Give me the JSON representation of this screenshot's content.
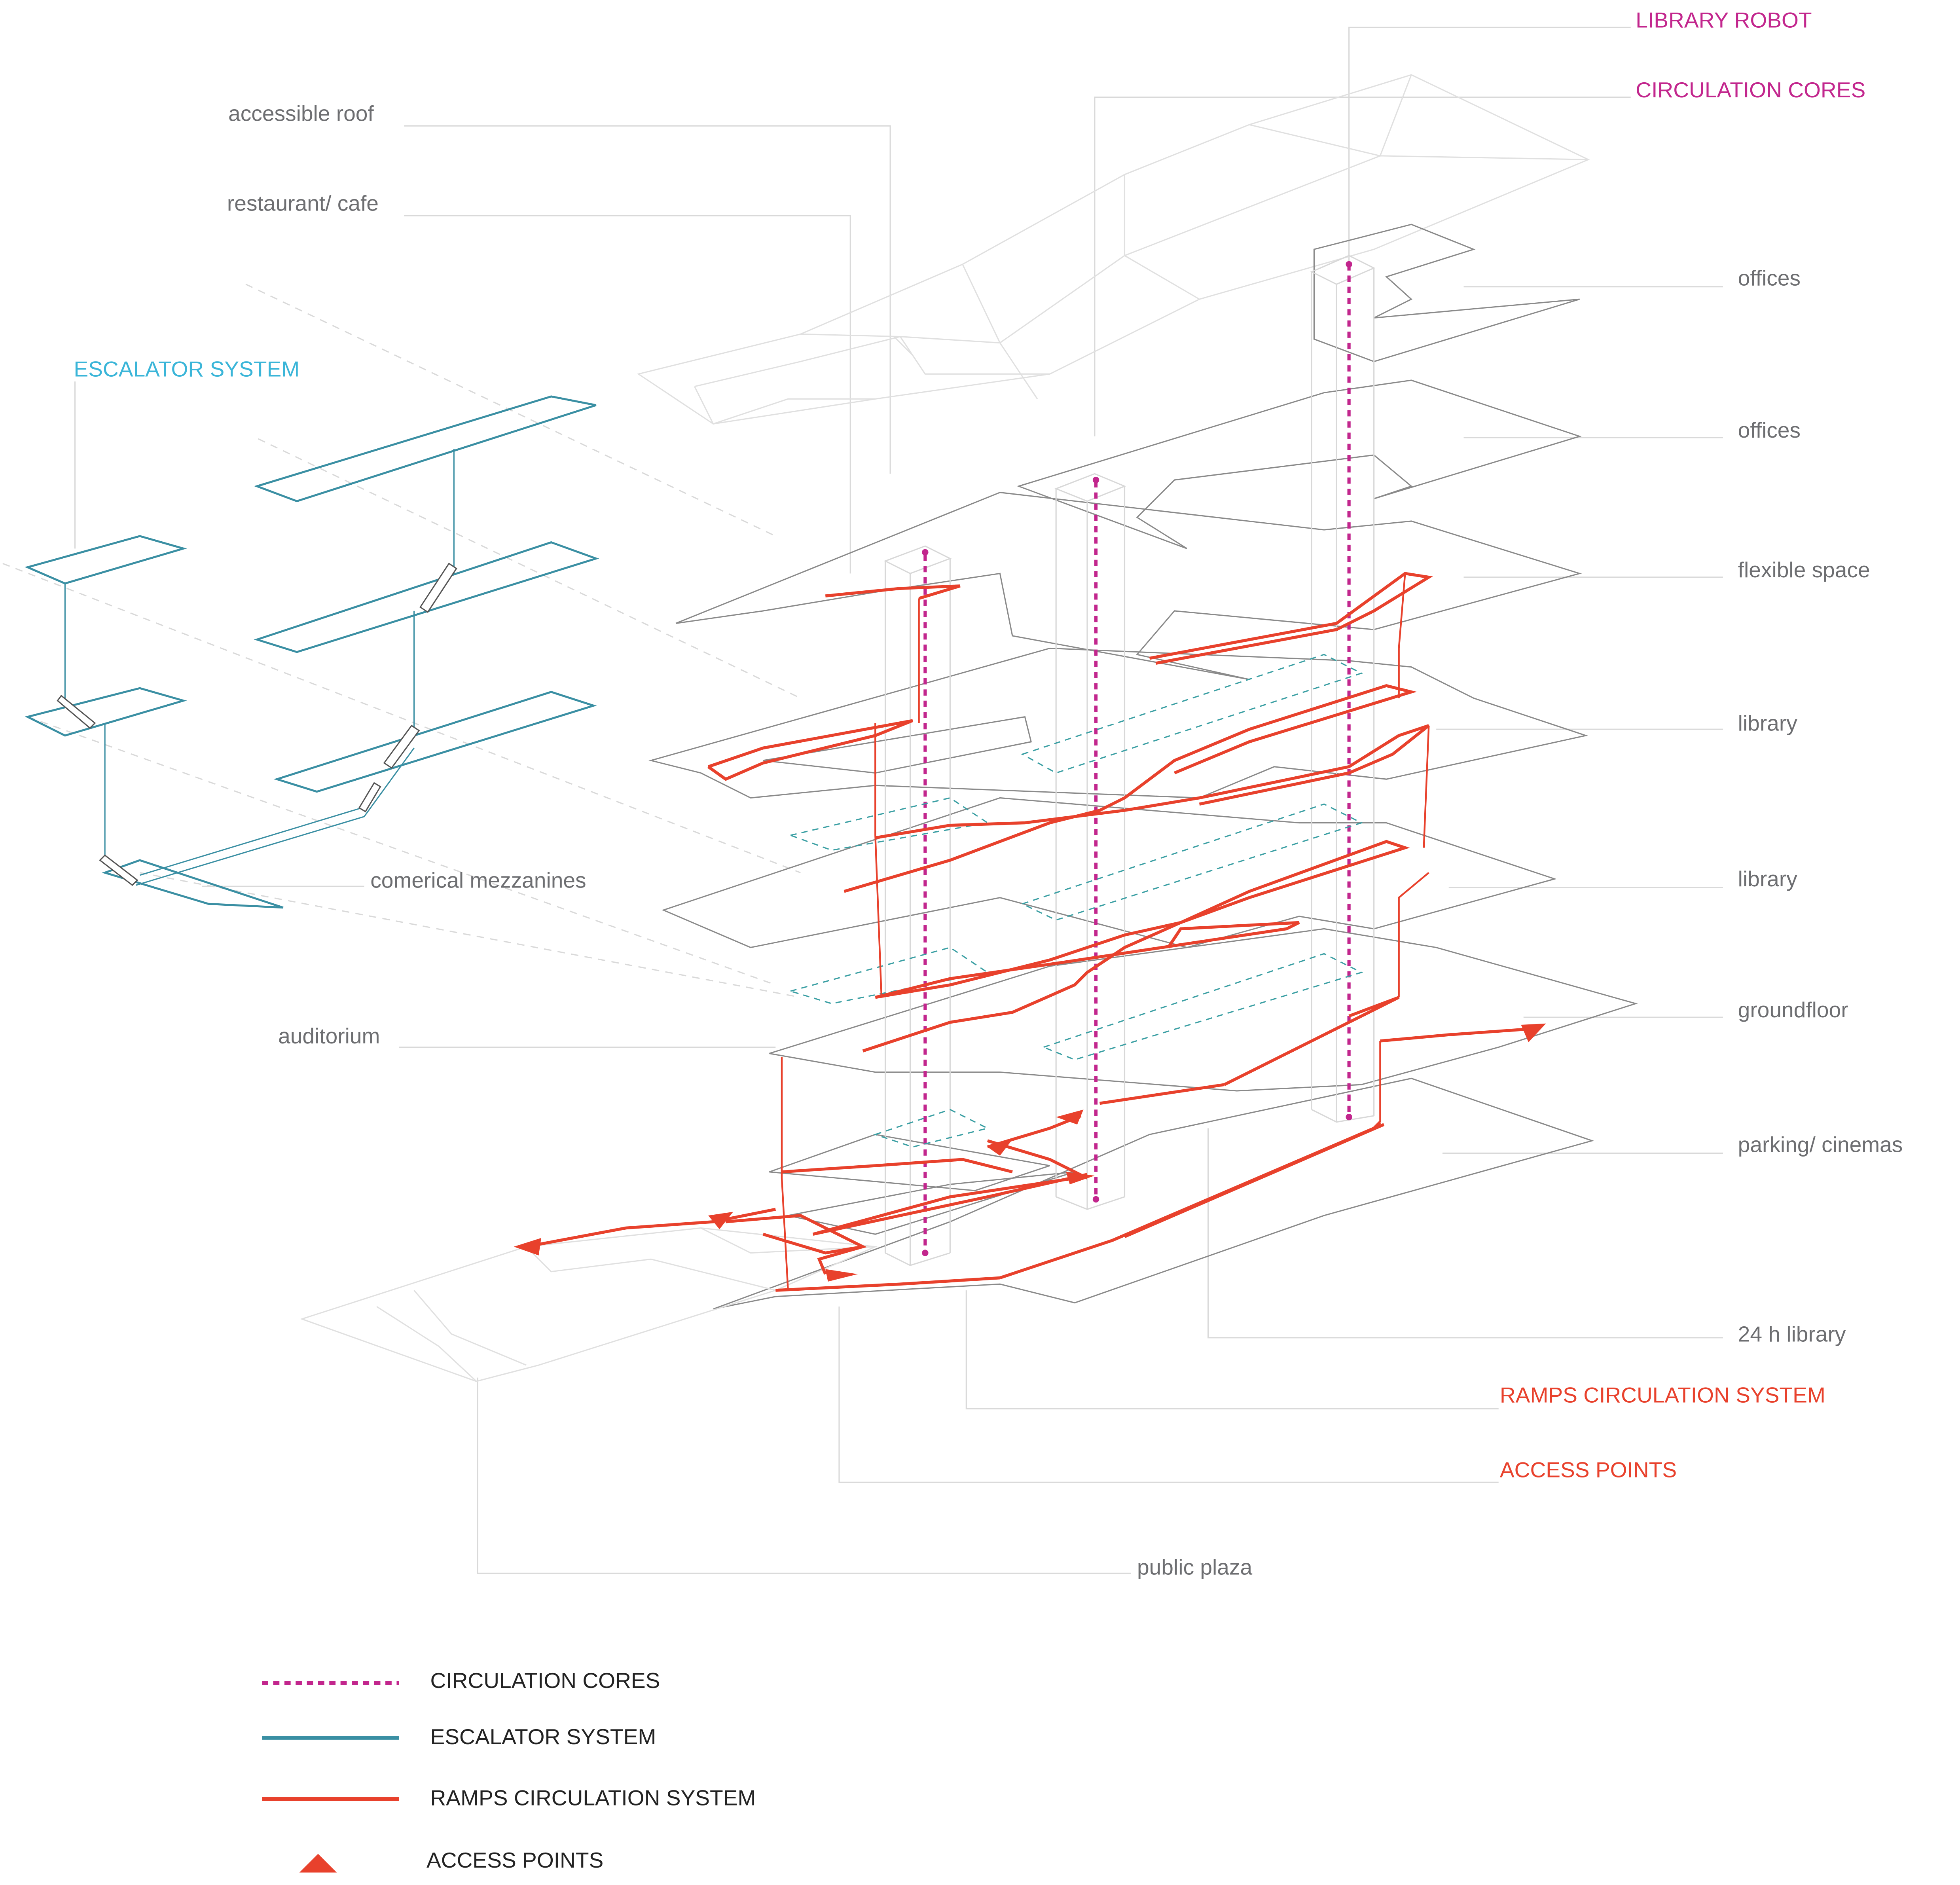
{
  "labels": {
    "library_robot": "LIBRARY ROBOT",
    "circulation_cores": "CIRCULATION CORES",
    "accessible_roof": "accessible roof",
    "restaurant_cafe": "restaurant/ cafe",
    "escalator_system": "ESCALATOR SYSTEM",
    "offices_upper": "offices",
    "offices_lower": "offices",
    "flexible_space": "flexible space",
    "library_upper": "library",
    "library_lower": "library",
    "comerical_mezzanines": "comerical mezzanines",
    "auditorium": "auditorium",
    "groundfloor": "groundfloor",
    "parking_cinemas": "parking/ cinemas",
    "library_24h": "24 h library",
    "ramps_circulation_system": "RAMPS CIRCULATION SYSTEM",
    "access_points": "ACCESS POINTS",
    "public_plaza": "public plaza"
  },
  "legend": [
    {
      "label": "CIRCULATION CORES",
      "style": "dashed",
      "color": "#c2268d"
    },
    {
      "label": "ESCALATOR SYSTEM",
      "style": "solid",
      "color": "#3a8fa3"
    },
    {
      "label": "RAMPS CIRCULATION SYSTEM",
      "style": "solid",
      "color": "#e8412c"
    },
    {
      "label": "ACCESS POINTS",
      "style": "triangle",
      "color": "#e8412c"
    }
  ],
  "colors": {
    "circulation_cores": "#c2268d",
    "escalator_system": "#3a8fa3",
    "escalator_label": "#3ab5d8",
    "ramps": "#e8412c",
    "floor_outline": "#8a8a8a",
    "text_gray": "#6d6e71"
  }
}
